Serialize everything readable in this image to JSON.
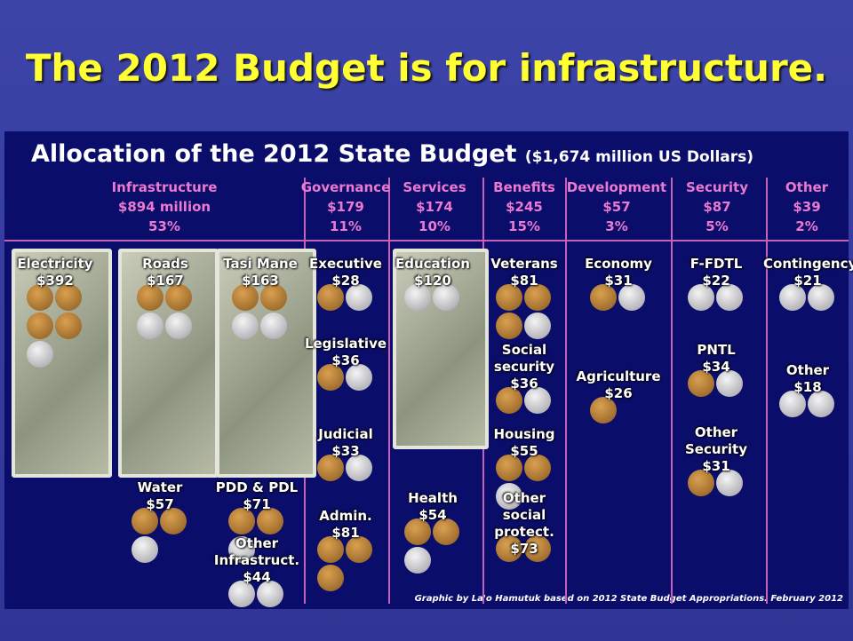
{
  "header": {
    "title": "The 2012 Budget is for infrastructure."
  },
  "panel": {
    "title": "Allocation of the 2012 State Budget",
    "subtitle": "($1,674 million US Dollars)",
    "categories": [
      {
        "name": "Infrastructure",
        "amount": "$894 million",
        "percent": "53%",
        "items": [
          {
            "label": "Electricity",
            "amount": "$392"
          },
          {
            "label": "Roads",
            "amount": "$167"
          },
          {
            "label": "Tasi Mane",
            "amount": "$163"
          },
          {
            "label": "Water",
            "amount": "$57"
          },
          {
            "label": "PDD & PDL",
            "amount": "$71"
          },
          {
            "label": "Other Infrastruct.",
            "amount": "$44"
          }
        ]
      },
      {
        "name": "Governance",
        "amount": "$179",
        "percent": "11%",
        "items": [
          {
            "label": "Executive",
            "amount": "$28"
          },
          {
            "label": "Legislative",
            "amount": "$36"
          },
          {
            "label": "Judicial",
            "amount": "$33"
          },
          {
            "label": "Admin.",
            "amount": "$81"
          }
        ]
      },
      {
        "name": "Services",
        "amount": "$174",
        "percent": "10%",
        "items": [
          {
            "label": "Education",
            "amount": "$120"
          },
          {
            "label": "Health",
            "amount": "$54"
          }
        ]
      },
      {
        "name": "Benefits",
        "amount": "$245",
        "percent": "15%",
        "items": [
          {
            "label": "Veterans",
            "amount": "$81"
          },
          {
            "label": "Social security",
            "amount": "$36"
          },
          {
            "label": "Housing",
            "amount": "$55"
          },
          {
            "label": "Other social protect.",
            "amount": "$73"
          }
        ]
      },
      {
        "name": "Development",
        "amount": "$57",
        "percent": "3%",
        "items": [
          {
            "label": "Economy",
            "amount": "$31"
          },
          {
            "label": "Agriculture",
            "amount": "$26"
          }
        ]
      },
      {
        "name": "Security",
        "amount": "$87",
        "percent": "5%",
        "items": [
          {
            "label": "F-FDTL",
            "amount": "$22"
          },
          {
            "label": "PNTL",
            "amount": "$34"
          },
          {
            "label": "Other Security",
            "amount": "$31"
          }
        ]
      },
      {
        "name": "Other",
        "amount": "$39",
        "percent": "2%",
        "items": [
          {
            "label": "Contingency",
            "amount": "$21"
          },
          {
            "label": "Other",
            "amount": "$18"
          }
        ]
      }
    ],
    "credit": "Graphic by La'o Hamutuk based on 2012 State Budget Appropriations.  February 2012"
  }
}
